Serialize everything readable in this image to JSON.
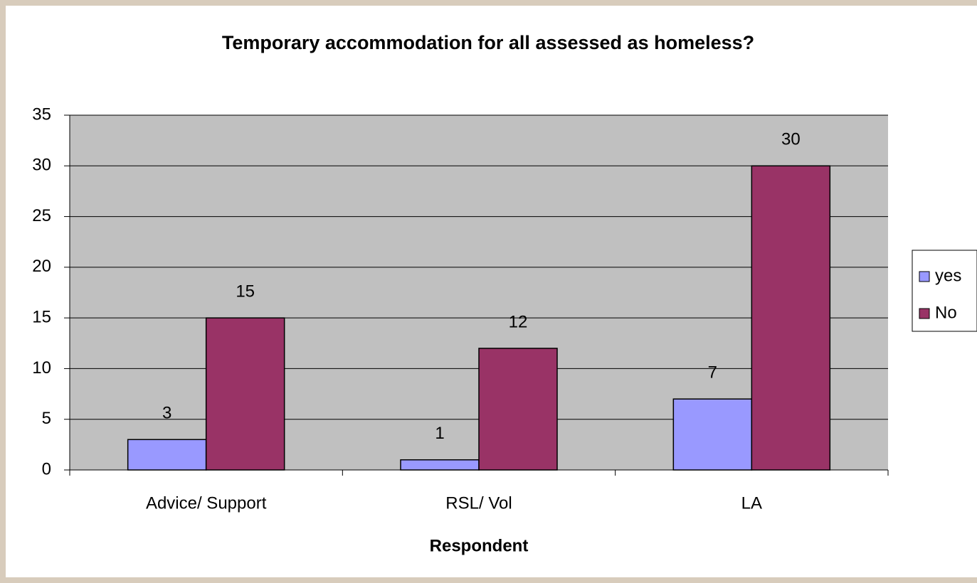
{
  "chart_data": {
    "type": "bar",
    "title": "Temporary accommodation for all assessed as homeless?",
    "xlabel": "Respondent",
    "categories": [
      "Advice/ Support",
      "RSL/ Vol",
      "LA"
    ],
    "series": [
      {
        "name": "yes",
        "color": "#9999ff",
        "values": [
          3,
          1,
          7
        ]
      },
      {
        "name": "No",
        "color": "#993366",
        "values": [
          15,
          12,
          30
        ]
      }
    ],
    "ylim": [
      0,
      35
    ],
    "yticks": [
      0,
      5,
      10,
      15,
      20,
      25,
      30,
      35
    ],
    "grid": true,
    "legend": "right"
  }
}
